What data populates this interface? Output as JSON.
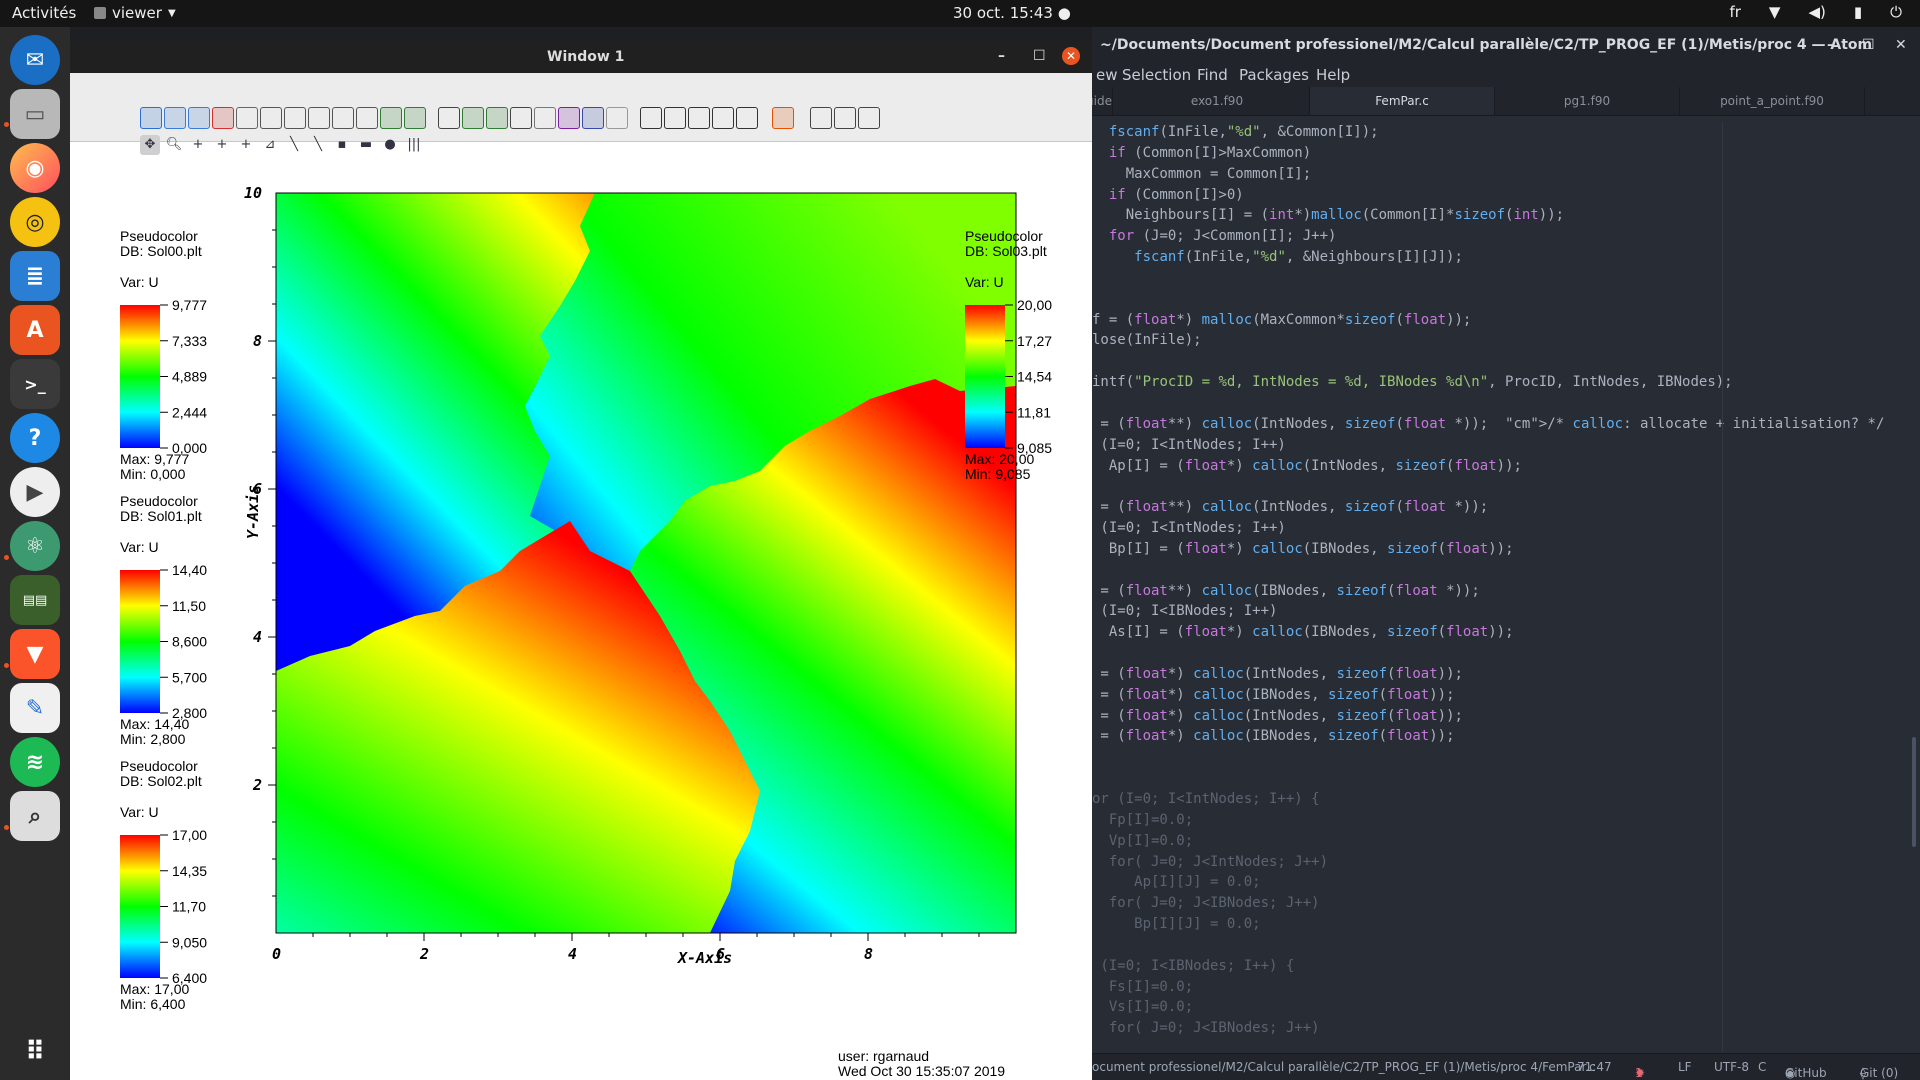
{
  "topbar": {
    "activities": "Activités",
    "app": "viewer",
    "clock": "30 oct.  15:43",
    "keyboard": "fr",
    "icons": [
      "network-icon",
      "volume-icon",
      "battery-icon",
      "power-icon"
    ]
  },
  "dock": {
    "apps": [
      "thunderbird",
      "files",
      "firefox",
      "rhythmbox",
      "libreoffice-writer",
      "software",
      "terminal",
      "help",
      "videos",
      "atom",
      "system-monitor",
      "brave",
      "text-editor",
      "spotify",
      "search"
    ],
    "show_apps": "apps-grid-icon"
  },
  "atom": {
    "title": "~/Documents/Document professionel/M2/Calcul parallèle/C2/TP_PROG_EF (1)/Metis/proc 4 — Atom",
    "menu": [
      "ew",
      "Selection",
      "Find",
      "Packages",
      "Help"
    ],
    "tabs": [
      "Guide",
      "exo1.f90",
      "FemPar.c",
      "pg1.f90",
      "point_a_point.f90"
    ],
    "active_tab": "FemPar.c",
    "code": [
      "  fscanf(InFile,\"%d\", &Common[I]);",
      "  if (Common[I]>MaxCommon)",
      "    MaxCommon = Common[I];",
      "  if (Common[I]>0)",
      "    Neighbours[I] = (int*)malloc(Common[I]*sizeof(int));",
      "  for (J=0; J<Common[I]; J++)",
      "     fscanf(InFile,\"%d\", &Neighbours[I][J]);",
      "",
      "",
      "f = (float*) malloc(MaxCommon*sizeof(float));",
      "lose(InFile);",
      "",
      "intf(\"ProcID = %d, IntNodes = %d, IBNodes %d\\n\", ProcID, IntNodes, IBNodes);",
      "",
      " = (float**) calloc(IntNodes, sizeof(float *));  /* calloc: allocate + initialisation? */",
      " (I=0; I<IntNodes; I++)",
      "  Ap[I] = (float*) calloc(IntNodes, sizeof(float));",
      "",
      " = (float**) calloc(IntNodes, sizeof(float *));",
      " (I=0; I<IntNodes; I++)",
      "  Bp[I] = (float*) calloc(IBNodes, sizeof(float));",
      "",
      " = (float**) calloc(IBNodes, sizeof(float *));",
      " (I=0; I<IBNodes; I++)",
      "  As[I] = (float*) calloc(IBNodes, sizeof(float));",
      "",
      " = (float*) calloc(IntNodes, sizeof(float));",
      " = (float*) calloc(IBNodes, sizeof(float));",
      " = (float*) calloc(IntNodes, sizeof(float));",
      " = (float*) calloc(IBNodes, sizeof(float));",
      "",
      "",
      "or (I=0; I<IntNodes; I++) {",
      "  Fp[I]=0.0;",
      "  Vp[I]=0.0;",
      "  for( J=0; J<IntNodes; J++)",
      "     Ap[I][J] = 0.0;",
      "  for( J=0; J<IBNodes; J++)",
      "     Bp[I][J] = 0.0;",
      "",
      " (I=0; I<IBNodes; I++) {",
      "  Fs[I]=0.0;",
      "  Vs[I]=0.0;",
      "  for( J=0; J<IBNodes; J++)"
    ],
    "status": {
      "path": "ocument professionel/M2/Calcul parallèle/C2/TP_PROG_EF (1)/Metis/proc 4/FemPar.c",
      "cursor": "71:47",
      "issues": "1",
      "eol": "LF",
      "encoding": "UTF-8",
      "grammar": "C",
      "github": "GitHub",
      "git": "Git (0)"
    }
  },
  "visit": {
    "title": "Window 1",
    "x_axis_label": "X-Axis",
    "y_axis_label": "Y-Axis",
    "x_ticks": [
      "0",
      "2",
      "4",
      "6",
      "8"
    ],
    "y_ticks": [
      "2",
      "4",
      "6",
      "8",
      "10"
    ],
    "user_line": "user: rgarnaud",
    "date_line": "Wed Oct 30 15:35:07 2019",
    "legends": [
      {
        "plot": "Pseudocolor",
        "db": "DB: Sol00.plt",
        "var": "Var: U",
        "ticks": [
          "9,777",
          "7,333",
          "4,889",
          "2,444",
          "0,000"
        ],
        "max": "Max:  9,777",
        "min": "Min:  0,000"
      },
      {
        "plot": "Pseudocolor",
        "db": "DB: Sol01.plt",
        "var": "Var: U",
        "ticks": [
          "14,40",
          "11,50",
          "8,600",
          "5,700",
          "2,800"
        ],
        "max": "Max:  14,40",
        "min": "Min:  2,800"
      },
      {
        "plot": "Pseudocolor",
        "db": "DB: Sol02.plt",
        "var": "Var: U",
        "ticks": [
          "17,00",
          "14,35",
          "11,70",
          "9,050",
          "6,400"
        ],
        "max": "Max:  17,00",
        "min": "Min:  6,400"
      },
      {
        "plot": "Pseudocolor",
        "db": "DB: Sol03.plt",
        "var": "Var: U",
        "ticks": [
          "20,00",
          "17,27",
          "14,54",
          "11,81",
          "9,085"
        ],
        "max": "Max:  20,00",
        "min": "Min:  9,085"
      }
    ]
  },
  "colors": {
    "accent": "#e95420",
    "atom_bg": "#282c34",
    "dock_bg": "#2b2b2b"
  }
}
